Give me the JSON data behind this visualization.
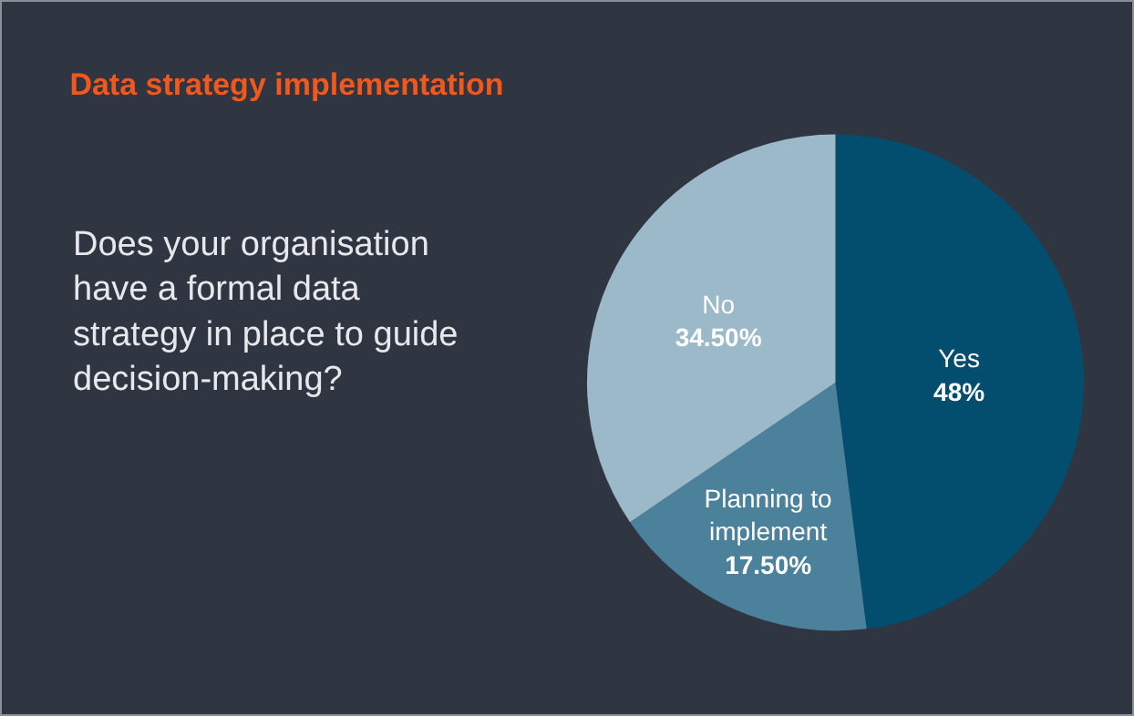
{
  "chart_data": {
    "type": "pie",
    "title": "Data strategy implementation",
    "subtitle": "Does your organisation have a formal data strategy in place to guide decision-making?",
    "categories": [
      "Yes",
      "Planning to implement",
      "No"
    ],
    "values": [
      48,
      17.5,
      34.5
    ],
    "value_labels": [
      "48%",
      "17.50%",
      "34.50%"
    ],
    "colors": [
      "#034e6f",
      "#4b819b",
      "#9bb9c9"
    ],
    "legend": false
  }
}
